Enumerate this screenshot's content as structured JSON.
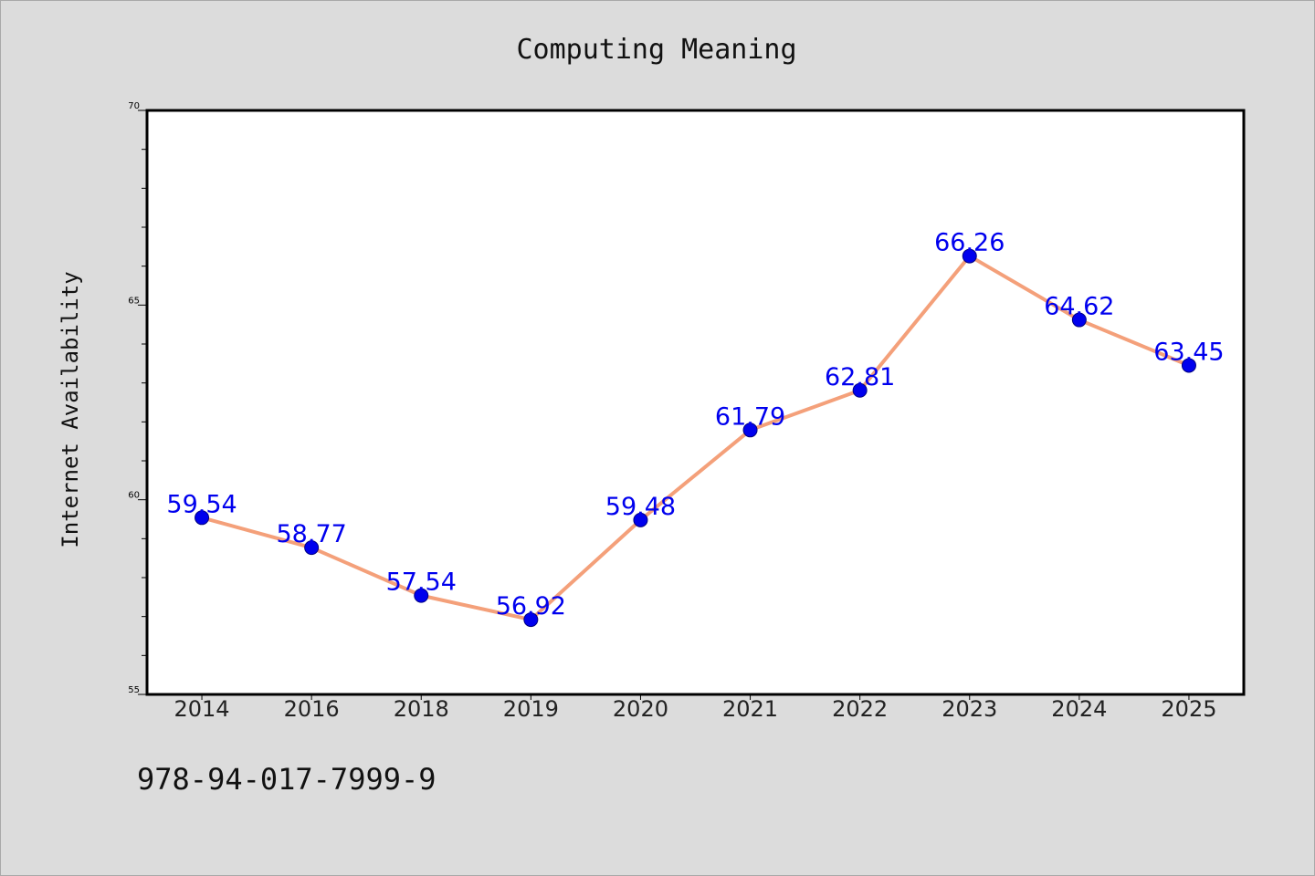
{
  "chart_data": {
    "type": "line",
    "title": "Computing Meaning",
    "xlabel": "",
    "ylabel": "Internet Availability",
    "categories": [
      "2014",
      "2016",
      "2018",
      "2019",
      "2020",
      "2021",
      "2022",
      "2023",
      "2024",
      "2025"
    ],
    "series": [
      {
        "values": [
          59.54,
          58.77,
          57.54,
          56.92,
          59.48,
          61.79,
          62.81,
          66.26,
          64.62,
          63.45
        ]
      }
    ],
    "data_labels": [
      "59.54",
      "58.77",
      "57.54",
      "56.92",
      "59.48",
      "61.79",
      "62.81",
      "66.26",
      "64.62",
      "63.45"
    ],
    "ylim": [
      55,
      70
    ],
    "yticks": [
      55,
      60,
      65,
      70
    ],
    "yminor_step": 1,
    "grid": false,
    "legend": "none",
    "colors": {
      "line": "#f4a07a",
      "marker": "#0000ee",
      "marker_edge": "#000080",
      "data_label": "#0000ee"
    }
  },
  "footer_text": "978-94-017-7999-9"
}
